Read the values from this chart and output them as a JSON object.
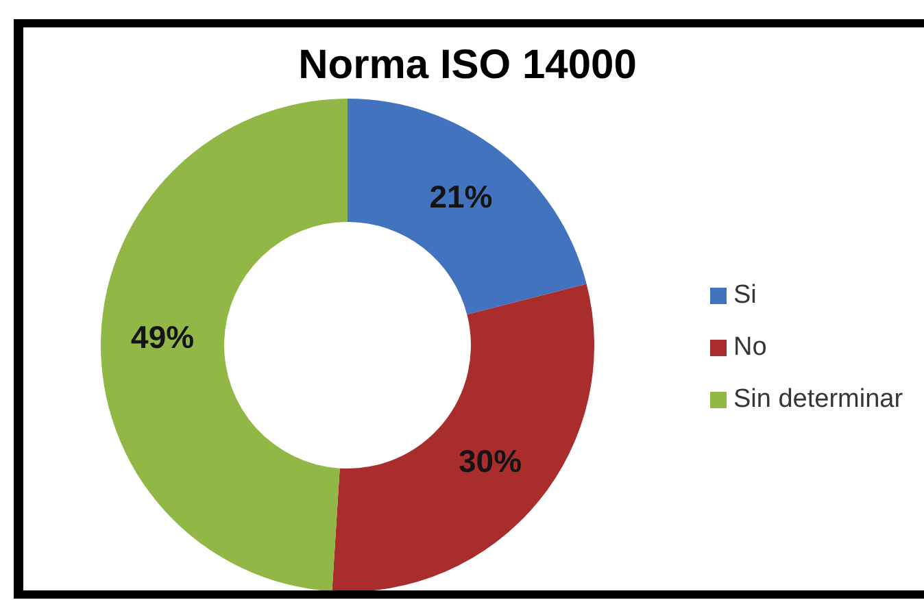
{
  "chart_data": {
    "type": "donut",
    "title": "Norma ISO 14000",
    "categories": [
      "Si",
      "No",
      "Sin determinar"
    ],
    "values": [
      21,
      30,
      49
    ],
    "colors": [
      "#4273be",
      "#aa2d2d",
      "#91b846"
    ],
    "value_labels": [
      "21%",
      "30%",
      "49%"
    ],
    "legend": "right"
  }
}
